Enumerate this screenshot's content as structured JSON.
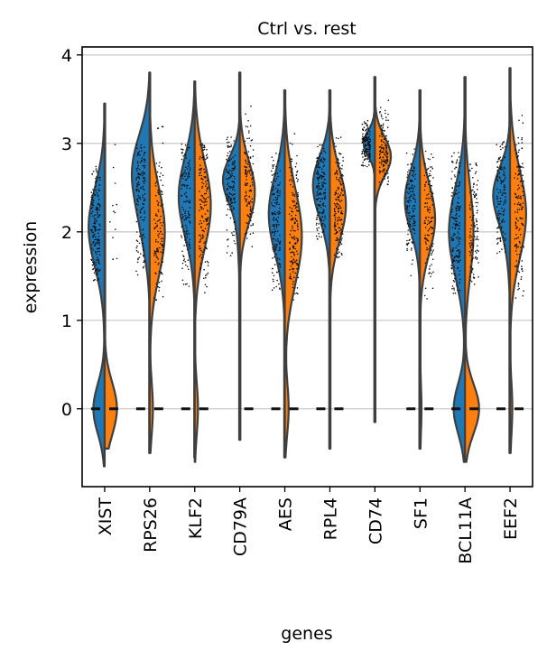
{
  "chart_data": {
    "type": "violin",
    "subtype": "split-violin-with-stripplot",
    "title": "Ctrl vs. rest",
    "xlabel": "genes",
    "ylabel": "expression",
    "ylim": [
      -0.88,
      4.09
    ],
    "yticks": [
      0,
      1,
      2,
      3,
      4
    ],
    "grid": true,
    "groups": [
      {
        "name": "Ctrl",
        "color": "#1f77b4",
        "side": "left"
      },
      {
        "name": "rest",
        "color": "#ff7f0e",
        "side": "right"
      }
    ],
    "categories": [
      "XIST",
      "RPS26",
      "KLF2",
      "CD79A",
      "AES",
      "RPL4",
      "CD74",
      "SF1",
      "BCL11A",
      "EEF2"
    ],
    "series": [
      {
        "name": "Ctrl",
        "violins": [
          {
            "gene": "XIST",
            "min": -0.65,
            "max": 3.45,
            "modes": [
              {
                "y": 2.05,
                "w": 0.85,
                "s": 0.45
              },
              {
                "y": 0.0,
                "w": 0.6,
                "s": 0.28
              }
            ],
            "pts": [
              1.45,
              2.75
            ],
            "zeros": true
          },
          {
            "gene": "RPS26",
            "min": -0.5,
            "max": 3.8,
            "modes": [
              {
                "y": 2.7,
                "w": 0.9,
                "s": 0.4
              },
              {
                "y": 2.0,
                "w": 0.3,
                "s": 0.35
              }
            ],
            "pts": [
              1.5,
              3.0
            ],
            "zeros": true
          },
          {
            "gene": "KLF2",
            "min": -0.55,
            "max": 3.7,
            "modes": [
              {
                "y": 2.4,
                "w": 0.85,
                "s": 0.45
              }
            ],
            "pts": [
              1.3,
              3.0
            ],
            "zeros": true
          },
          {
            "gene": "CD79A",
            "min": -0.35,
            "max": 3.8,
            "modes": [
              {
                "y": 2.6,
                "w": 0.8,
                "s": 0.25
              },
              {
                "y": 2.2,
                "w": 0.15,
                "s": 0.4
              }
            ],
            "pts": [
              1.6,
              3.1
            ],
            "zeros": false
          },
          {
            "gene": "AES",
            "min": -0.55,
            "max": 3.6,
            "modes": [
              {
                "y": 2.2,
                "w": 0.85,
                "s": 0.45
              }
            ],
            "pts": [
              1.3,
              2.9
            ],
            "zeros": true
          },
          {
            "gene": "RPL4",
            "min": -0.45,
            "max": 3.6,
            "modes": [
              {
                "y": 2.6,
                "w": 0.75,
                "s": 0.3
              },
              {
                "y": 2.2,
                "w": 0.3,
                "s": 0.3
              }
            ],
            "pts": [
              1.9,
              3.0
            ],
            "zeros": true
          },
          {
            "gene": "CD74",
            "min": -0.15,
            "max": 3.75,
            "modes": [
              {
                "y": 3.0,
                "w": 0.6,
                "s": 0.14
              }
            ],
            "pts": [
              2.7,
              3.3
            ],
            "zeros": false
          },
          {
            "gene": "SF1",
            "min": -0.45,
            "max": 3.6,
            "modes": [
              {
                "y": 2.35,
                "w": 0.8,
                "s": 0.35
              }
            ],
            "pts": [
              1.5,
              2.95
            ],
            "zeros": true
          },
          {
            "gene": "BCL11A",
            "min": -0.6,
            "max": 3.75,
            "modes": [
              {
                "y": 2.0,
                "w": 0.85,
                "s": 0.5
              },
              {
                "y": 0.0,
                "w": 0.6,
                "s": 0.28
              }
            ],
            "pts": [
              1.3,
              2.9
            ],
            "zeros": true
          },
          {
            "gene": "EEF2",
            "min": -0.5,
            "max": 3.85,
            "modes": [
              {
                "y": 2.45,
                "w": 0.8,
                "s": 0.3
              },
              {
                "y": 2.0,
                "w": 0.2,
                "s": 0.35
              }
            ],
            "pts": [
              1.7,
              3.1
            ],
            "zeros": true
          }
        ]
      },
      {
        "name": "rest",
        "violins": [
          {
            "gene": "XIST",
            "min": -0.45,
            "max": 3.45,
            "modes": [
              {
                "y": 0.0,
                "w": 0.65,
                "s": 0.3
              }
            ],
            "pts": [
              1.6,
              3.0
            ],
            "zeros": true
          },
          {
            "gene": "RPS26",
            "min": -0.5,
            "max": 3.8,
            "modes": [
              {
                "y": 2.0,
                "w": 0.8,
                "s": 0.5
              },
              {
                "y": 0.0,
                "w": 0.17,
                "s": 0.3
              }
            ],
            "pts": [
              1.2,
              3.3
            ],
            "zeros": true
          },
          {
            "gene": "KLF2",
            "min": -0.6,
            "max": 3.7,
            "modes": [
              {
                "y": 2.3,
                "w": 0.85,
                "s": 0.5
              },
              {
                "y": 0.0,
                "w": 0.17,
                "s": 0.3
              }
            ],
            "pts": [
              1.3,
              3.05
            ],
            "zeros": true
          },
          {
            "gene": "CD79A",
            "min": -0.35,
            "max": 3.8,
            "modes": [
              {
                "y": 2.45,
                "w": 0.8,
                "s": 0.35
              }
            ],
            "pts": [
              1.6,
              3.45
            ],
            "zeros": true
          },
          {
            "gene": "AES",
            "min": -0.55,
            "max": 3.6,
            "modes": [
              {
                "y": 1.95,
                "w": 0.9,
                "s": 0.55
              },
              {
                "y": 0.0,
                "w": 0.2,
                "s": 0.3
              }
            ],
            "pts": [
              1.15,
              3.2
            ],
            "zeros": true
          },
          {
            "gene": "RPL4",
            "min": -0.45,
            "max": 3.6,
            "modes": [
              {
                "y": 2.3,
                "w": 0.85,
                "s": 0.4
              }
            ],
            "pts": [
              1.7,
              3.15
            ],
            "zeros": true
          },
          {
            "gene": "CD74",
            "min": -0.15,
            "max": 3.75,
            "modes": [
              {
                "y": 2.85,
                "w": 0.85,
                "s": 0.22
              }
            ],
            "pts": [
              2.5,
              3.55
            ],
            "zeros": false
          },
          {
            "gene": "SF1",
            "min": -0.45,
            "max": 3.6,
            "modes": [
              {
                "y": 2.15,
                "w": 0.8,
                "s": 0.4
              },
              {
                "y": 0.0,
                "w": 0.08,
                "s": 0.3
              }
            ],
            "pts": [
              1.2,
              3.05
            ],
            "zeros": true
          },
          {
            "gene": "BCL11A",
            "min": -0.6,
            "max": 3.75,
            "modes": [
              {
                "y": 2.0,
                "w": 0.45,
                "s": 0.5
              },
              {
                "y": 0.0,
                "w": 0.75,
                "s": 0.28
              }
            ],
            "pts": [
              1.4,
              2.8
            ],
            "zeros": true
          },
          {
            "gene": "EEF2",
            "min": -0.5,
            "max": 3.85,
            "modes": [
              {
                "y": 2.2,
                "w": 0.85,
                "s": 0.5
              },
              {
                "y": 0.0,
                "w": 0.12,
                "s": 0.3
              }
            ],
            "pts": [
              1.2,
              3.35
            ],
            "zeros": true
          }
        ]
      }
    ]
  }
}
